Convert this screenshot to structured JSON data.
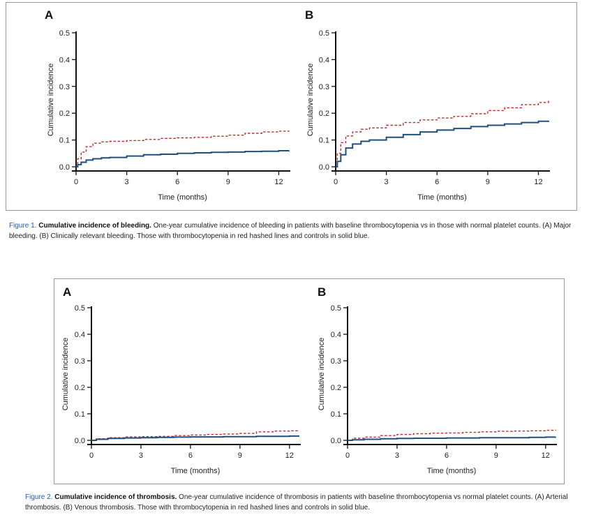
{
  "colors": {
    "thrombocytopenia": "#c62a2a",
    "controls": "#1f4e80"
  },
  "figures": [
    {
      "caption_label": "Figure 1.",
      "caption_title": "Cumulative incidence of bleeding.",
      "caption_text": " One-year cumulative incidence of bleeding in patients with baseline thrombocytopenia vs in those with normal platelet counts. (A) Major bleeding. (B) Clinically relevant bleeding. Those with thrombocytopenia in red hashed lines and controls in solid blue."
    },
    {
      "caption_label": "Figure 2.",
      "caption_title": "Cumulative incidence of thrombosis.",
      "caption_text": " One-year cumulative incidence of thrombosis in patients with baseline thrombocytopenia vs normal platelet counts. (A) Arterial thrombosis. (B) Venous thrombosis. Those with thrombocytopenia in red hashed lines and controls in solid blue."
    }
  ],
  "chart_data": [
    {
      "type": "line",
      "panel": "A",
      "xlabel": "Time (months)",
      "ylabel": "Cumulative incidence",
      "xlim": [
        0,
        12.6
      ],
      "ylim": [
        0,
        0.5
      ],
      "xticks": [
        0,
        3,
        6,
        9,
        12
      ],
      "yticks": [
        0.0,
        0.1,
        0.2,
        0.3,
        0.4,
        0.5
      ],
      "series": [
        {
          "style": "dashed",
          "x": [
            0,
            0.1,
            0.3,
            0.6,
            1,
            1.5,
            2,
            3,
            4,
            5,
            6,
            7,
            8,
            9,
            10,
            11,
            12,
            12.6
          ],
          "y": [
            0,
            0.03,
            0.055,
            0.075,
            0.088,
            0.093,
            0.095,
            0.098,
            0.102,
            0.106,
            0.108,
            0.11,
            0.114,
            0.118,
            0.125,
            0.13,
            0.133,
            0.135
          ]
        },
        {
          "style": "solid",
          "x": [
            0,
            0.1,
            0.3,
            0.6,
            1,
            1.5,
            2,
            3,
            4,
            5,
            6,
            7,
            8,
            9,
            10,
            11,
            12,
            12.6
          ],
          "y": [
            0,
            0.008,
            0.017,
            0.025,
            0.03,
            0.033,
            0.035,
            0.04,
            0.045,
            0.047,
            0.05,
            0.052,
            0.054,
            0.055,
            0.057,
            0.058,
            0.06,
            0.061
          ]
        }
      ]
    },
    {
      "type": "line",
      "panel": "B",
      "xlabel": "Time (months)",
      "ylabel": "Cumulative incidence",
      "xlim": [
        0,
        12.6
      ],
      "ylim": [
        0,
        0.5
      ],
      "xticks": [
        0,
        3,
        6,
        9,
        12
      ],
      "yticks": [
        0.0,
        0.1,
        0.2,
        0.3,
        0.4,
        0.5
      ],
      "series": [
        {
          "style": "dashed",
          "x": [
            0,
            0.1,
            0.3,
            0.6,
            1,
            1.5,
            2,
            3,
            4,
            5,
            6,
            7,
            8,
            9,
            10,
            11,
            12,
            12.6
          ],
          "y": [
            0,
            0.05,
            0.09,
            0.115,
            0.13,
            0.14,
            0.145,
            0.155,
            0.165,
            0.175,
            0.182,
            0.188,
            0.198,
            0.21,
            0.22,
            0.232,
            0.24,
            0.248
          ]
        },
        {
          "style": "solid",
          "x": [
            0,
            0.1,
            0.3,
            0.6,
            1,
            1.5,
            2,
            3,
            4,
            5,
            6,
            7,
            8,
            9,
            10,
            11,
            12,
            12.6
          ],
          "y": [
            0,
            0.02,
            0.045,
            0.07,
            0.085,
            0.095,
            0.1,
            0.11,
            0.12,
            0.13,
            0.137,
            0.143,
            0.15,
            0.155,
            0.16,
            0.165,
            0.17,
            0.172
          ]
        }
      ]
    },
    {
      "type": "line",
      "panel": "A",
      "xlabel": "Time (months)",
      "ylabel": "Cumulative incidence",
      "xlim": [
        0,
        12.6
      ],
      "ylim": [
        0,
        0.5
      ],
      "xticks": [
        0,
        3,
        6,
        9,
        12
      ],
      "yticks": [
        0.0,
        0.1,
        0.2,
        0.3,
        0.4,
        0.5
      ],
      "series": [
        {
          "style": "dashed",
          "x": [
            0,
            0.3,
            1,
            2,
            3,
            4,
            5,
            6,
            7,
            8,
            9,
            10,
            11,
            12,
            12.6
          ],
          "y": [
            0,
            0.006,
            0.01,
            0.013,
            0.014,
            0.015,
            0.018,
            0.02,
            0.022,
            0.024,
            0.026,
            0.032,
            0.035,
            0.036,
            0.037
          ]
        },
        {
          "style": "solid",
          "x": [
            0,
            0.3,
            1,
            2,
            3,
            4,
            5,
            6,
            7,
            8,
            9,
            10,
            11,
            12,
            12.6
          ],
          "y": [
            0,
            0.004,
            0.007,
            0.009,
            0.01,
            0.011,
            0.012,
            0.013,
            0.013,
            0.014,
            0.014,
            0.015,
            0.015,
            0.016,
            0.016
          ]
        }
      ]
    },
    {
      "type": "line",
      "panel": "B",
      "xlabel": "Time (months)",
      "ylabel": "Cumulative incidence",
      "xlim": [
        0,
        12.6
      ],
      "ylim": [
        0,
        0.5
      ],
      "xticks": [
        0,
        3,
        6,
        9,
        12
      ],
      "yticks": [
        0.0,
        0.1,
        0.2,
        0.3,
        0.4,
        0.5
      ],
      "series": [
        {
          "style": "dashed",
          "x": [
            0,
            0.3,
            1,
            2,
            3,
            4,
            5,
            6,
            7,
            8,
            9,
            10,
            11,
            12,
            12.6
          ],
          "y": [
            0,
            0.008,
            0.012,
            0.018,
            0.022,
            0.025,
            0.027,
            0.028,
            0.03,
            0.032,
            0.034,
            0.035,
            0.036,
            0.038,
            0.04
          ]
        },
        {
          "style": "solid",
          "x": [
            0,
            0.3,
            1,
            2,
            3,
            4,
            5,
            6,
            7,
            8,
            9,
            10,
            11,
            12,
            12.6
          ],
          "y": [
            0,
            0.002,
            0.004,
            0.006,
            0.007,
            0.008,
            0.008,
            0.009,
            0.009,
            0.01,
            0.01,
            0.01,
            0.011,
            0.012,
            0.013
          ]
        }
      ]
    }
  ]
}
